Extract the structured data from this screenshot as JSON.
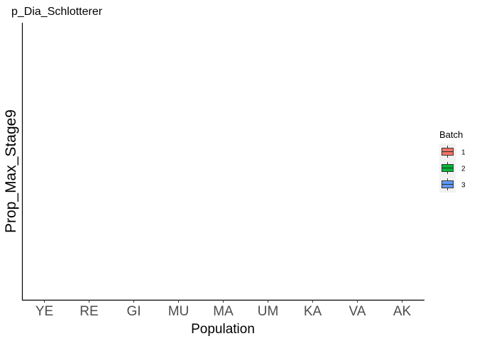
{
  "chart_data": {
    "type": "boxplot",
    "title": "p_Dia_Schlotterer",
    "xlabel": "Population",
    "ylabel": "Prop_Max_Stage9",
    "categories": [
      "YE",
      "RE",
      "GI",
      "MU",
      "MA",
      "UM",
      "KA",
      "VA",
      "AK"
    ],
    "series": [
      {
        "name": "1",
        "color": "#F8766D",
        "values": []
      },
      {
        "name": "2",
        "color": "#00BA38",
        "values": []
      },
      {
        "name": "3",
        "color": "#619CFF",
        "values": []
      }
    ],
    "legend": {
      "title": "Batch",
      "position": "right"
    },
    "grid": false,
    "y_ticks_shown": false
  }
}
